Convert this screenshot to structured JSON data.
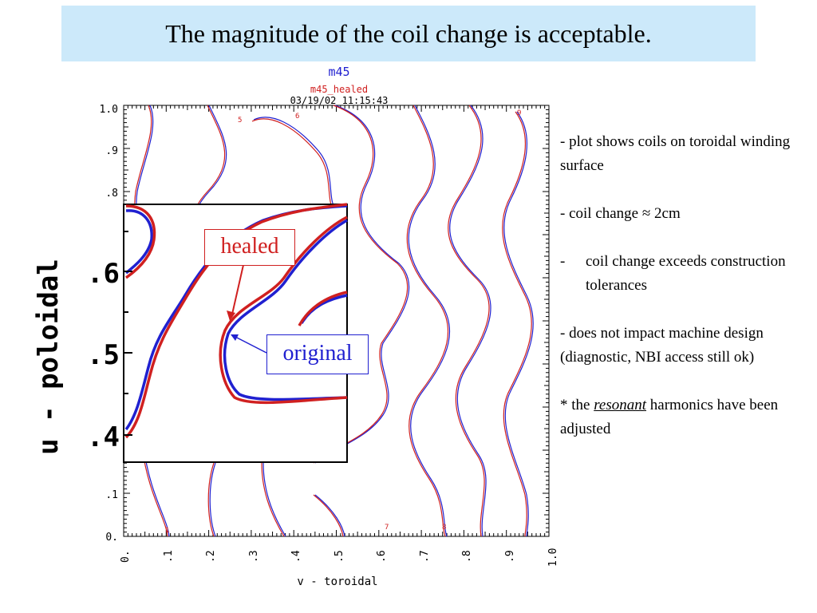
{
  "title": "The magnitude of the coil change is acceptable.",
  "plot": {
    "header_line1": "m45",
    "header_line2": "m45_healed",
    "header_line3": "03/19/02 11:15:43",
    "xlabel": "v - toroidal",
    "ylabel_main": "u - poloidal",
    "ylabel_inset": "u - poloidal",
    "x_ticks": [
      "0.",
      ".1",
      ".2",
      ".3",
      ".4",
      ".5",
      ".6",
      ".7",
      ".8",
      ".9",
      "1.0"
    ],
    "y_ticks_main": [
      "0.",
      ".1",
      ".8",
      ".9",
      "1.0"
    ],
    "y_ticks_inset": [
      ".4",
      ".5",
      ".6"
    ],
    "coil_labels": [
      "5",
      "6",
      "9",
      "1",
      "7",
      "8"
    ],
    "colors": {
      "healed": "#d02020",
      "original": "#2020d0"
    }
  },
  "callouts": {
    "healed": "healed",
    "original": "original"
  },
  "notes": {
    "n1": "- plot shows coils on toroidal winding surface",
    "n2": "- coil change ≈ 2cm",
    "n3_prefix": "-",
    "n3": "coil change exceeds construction tolerances",
    "n4": "- does not impact machine design (diagnostic, NBI access still ok)",
    "n5_prefix": "* the ",
    "n5_italic": "resonant",
    "n5_suffix": " harmonics have been adjusted"
  }
}
